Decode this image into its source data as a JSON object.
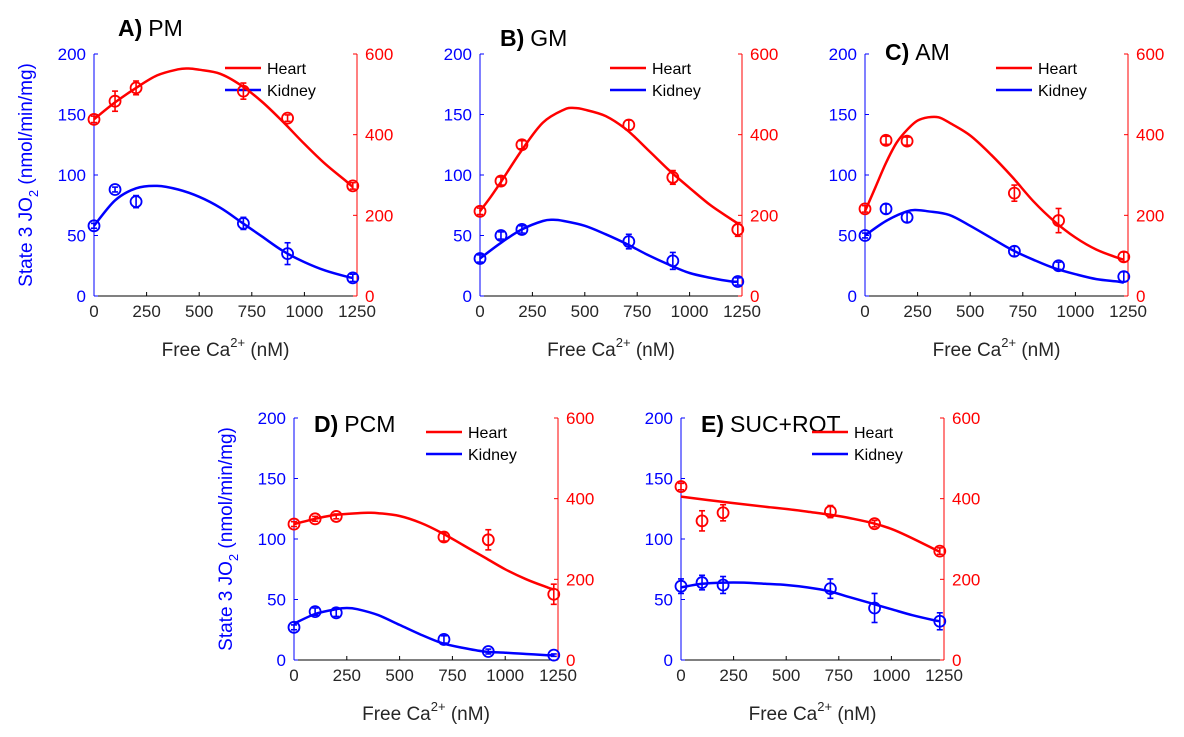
{
  "figure": {
    "left_axis_label": "State 3 JO",
    "left_axis_label_sub": "2",
    "left_axis_label_units": " (nmol/min/mg)",
    "x_axis_label": "Free Ca",
    "x_axis_label_sup": "2+",
    "x_axis_label_units": " (nM)"
  },
  "colors": {
    "heart": "#ff0000",
    "kidney": "#0000ff",
    "text": "#000000"
  },
  "chart_data": [
    {
      "type": "scatter",
      "id": "A",
      "letter": "A)",
      "name": "PM",
      "show_ylabel": true,
      "xlim": [
        0,
        1250
      ],
      "xticks": [
        0,
        250,
        500,
        750,
        1000,
        1250
      ],
      "ylim_left": [
        0,
        200
      ],
      "yticks_left": [
        0,
        50,
        100,
        150,
        200
      ],
      "ylim_right": [
        0,
        600
      ],
      "yticks_right": [
        0,
        200,
        400,
        600
      ],
      "legend": [
        "Heart",
        "Kidney"
      ],
      "series": [
        {
          "name": "Heart",
          "axis": "right",
          "x": [
            0,
            100,
            200,
            710,
            920,
            1230
          ],
          "y": [
            438,
            483,
            516,
            508,
            441,
            273
          ],
          "err": [
            8,
            25,
            17,
            20,
            8,
            8
          ],
          "fit_x": [
            0,
            100,
            200,
            300,
            400,
            450,
            500,
            600,
            700,
            800,
            900,
            1000,
            1100,
            1200,
            1230
          ],
          "fit_y": [
            438,
            480,
            516,
            547,
            562,
            564,
            561,
            551,
            522,
            481,
            431,
            377,
            327,
            284,
            270
          ]
        },
        {
          "name": "Kidney",
          "axis": "left",
          "x": [
            0,
            100,
            200,
            710,
            920,
            1230
          ],
          "y": [
            58,
            88,
            78,
            60,
            35,
            15
          ],
          "err": [
            2,
            2,
            5,
            5,
            9,
            3
          ],
          "fit_x": [
            0,
            100,
            200,
            300,
            400,
            500,
            600,
            700,
            800,
            900,
            1000,
            1100,
            1200,
            1230
          ],
          "fit_y": [
            58,
            79,
            89,
            91,
            88,
            82,
            73,
            61,
            49,
            37,
            28,
            21,
            16,
            15
          ]
        }
      ]
    },
    {
      "type": "scatter",
      "id": "B",
      "letter": "B)",
      "name": "GM",
      "show_ylabel": false,
      "xlim": [
        0,
        1250
      ],
      "xticks": [
        0,
        250,
        500,
        750,
        1000,
        1250
      ],
      "ylim_left": [
        0,
        200
      ],
      "yticks_left": [
        0,
        50,
        100,
        150,
        200
      ],
      "ylim_right": [
        0,
        600
      ],
      "yticks_right": [
        0,
        200,
        400,
        600
      ],
      "legend": [
        "Heart",
        "Kidney"
      ],
      "series": [
        {
          "name": "Heart",
          "axis": "right",
          "x": [
            0,
            100,
            200,
            710,
            920,
            1230
          ],
          "y": [
            210,
            285,
            375,
            424,
            294,
            165
          ],
          "err": [
            8,
            10,
            10,
            12,
            17,
            17
          ],
          "fit_x": [
            0,
            50,
            100,
            200,
            300,
            400,
            450,
            500,
            600,
            700,
            800,
            900,
            1000,
            1100,
            1200,
            1230
          ],
          "fit_y": [
            210,
            245,
            283,
            362,
            430,
            462,
            466,
            462,
            446,
            412,
            363,
            313,
            268,
            225,
            190,
            180
          ]
        },
        {
          "name": "Kidney",
          "axis": "left",
          "x": [
            0,
            100,
            200,
            710,
            920,
            1230
          ],
          "y": [
            31,
            50,
            55,
            45,
            29,
            12
          ],
          "err": [
            3,
            3,
            3,
            6,
            7,
            3
          ],
          "fit_x": [
            0,
            100,
            200,
            300,
            350,
            400,
            500,
            600,
            700,
            800,
            900,
            1000,
            1100,
            1200,
            1230
          ],
          "fit_y": [
            31,
            44,
            55,
            62,
            63,
            62,
            58,
            51,
            43,
            34,
            26,
            19,
            15,
            12,
            12
          ]
        }
      ]
    },
    {
      "type": "scatter",
      "id": "C",
      "letter": "C)",
      "name": "AM",
      "show_ylabel": false,
      "xlim": [
        0,
        1250
      ],
      "xticks": [
        0,
        250,
        500,
        750,
        1000,
        1250
      ],
      "ylim_left": [
        0,
        200
      ],
      "yticks_left": [
        0,
        50,
        100,
        150,
        200
      ],
      "ylim_right": [
        0,
        600
      ],
      "yticks_right": [
        0,
        200,
        400,
        600
      ],
      "legend": [
        "Heart",
        "Kidney"
      ],
      "series": [
        {
          "name": "Heart",
          "axis": "right",
          "x": [
            0,
            100,
            200,
            710,
            920,
            1230
          ],
          "y": [
            216,
            386,
            384,
            255,
            187,
            97
          ],
          "err": [
            8,
            10,
            10,
            20,
            30,
            12
          ],
          "fit_x": [
            0,
            50,
            100,
            150,
            200,
            250,
            300,
            350,
            400,
            500,
            600,
            700,
            800,
            900,
            1000,
            1100,
            1200,
            1230
          ],
          "fit_y": [
            210,
            270,
            330,
            380,
            412,
            435,
            443,
            443,
            430,
            398,
            350,
            295,
            235,
            185,
            145,
            115,
            95,
            90
          ]
        },
        {
          "name": "Kidney",
          "axis": "left",
          "x": [
            0,
            100,
            200,
            710,
            920,
            1230
          ],
          "y": [
            50,
            72,
            65,
            37,
            25,
            16
          ],
          "err": [
            2,
            4,
            4,
            4,
            3,
            4
          ],
          "fit_x": [
            0,
            100,
            200,
            250,
            300,
            400,
            500,
            600,
            700,
            800,
            900,
            1000,
            1100,
            1200,
            1230
          ],
          "fit_y": [
            50,
            62,
            70,
            71,
            70,
            67,
            58,
            48,
            38,
            30,
            23,
            18,
            14,
            12,
            11
          ]
        }
      ]
    },
    {
      "type": "scatter",
      "id": "D",
      "letter": "D)",
      "name": "PCM",
      "show_ylabel": true,
      "xlim": [
        0,
        1250
      ],
      "xticks": [
        0,
        250,
        500,
        750,
        1000,
        1250
      ],
      "ylim_left": [
        0,
        200
      ],
      "yticks_left": [
        0,
        50,
        100,
        150,
        200
      ],
      "ylim_right": [
        0,
        600
      ],
      "yticks_right": [
        0,
        200,
        400,
        600
      ],
      "legend": [
        "Heart",
        "Kidney"
      ],
      "series": [
        {
          "name": "Heart",
          "axis": "right",
          "x": [
            0,
            100,
            200,
            710,
            920,
            1230
          ],
          "y": [
            337,
            350,
            356,
            305,
            298,
            163
          ],
          "err": [
            6,
            6,
            6,
            10,
            25,
            25
          ],
          "fit_x": [
            0,
            100,
            200,
            300,
            350,
            400,
            500,
            600,
            700,
            800,
            900,
            1000,
            1100,
            1200,
            1230
          ],
          "fit_y": [
            337,
            350,
            360,
            364,
            365,
            364,
            357,
            340,
            315,
            285,
            255,
            225,
            200,
            180,
            175
          ]
        },
        {
          "name": "Kidney",
          "axis": "left",
          "x": [
            0,
            100,
            200,
            710,
            920,
            1230
          ],
          "y": [
            27,
            40,
            39,
            17,
            7,
            4
          ],
          "err": [
            2,
            3,
            3,
            3,
            2,
            1
          ],
          "fit_x": [
            0,
            100,
            200,
            250,
            300,
            400,
            500,
            600,
            700,
            800,
            900,
            1000,
            1100,
            1200,
            1230
          ],
          "fit_y": [
            30,
            38,
            42,
            43,
            42,
            37,
            29,
            21,
            14,
            10,
            7,
            6,
            5,
            4,
            4
          ]
        }
      ]
    },
    {
      "type": "scatter",
      "id": "E",
      "letter": "E)",
      "name": "SUC+ROT",
      "show_ylabel": false,
      "xlim": [
        0,
        1250
      ],
      "xticks": [
        0,
        250,
        500,
        750,
        1000,
        1250
      ],
      "ylim_left": [
        0,
        200
      ],
      "yticks_left": [
        0,
        50,
        100,
        150,
        200
      ],
      "ylim_right": [
        0,
        600
      ],
      "yticks_right": [
        0,
        200,
        400,
        600
      ],
      "legend": [
        "Heart",
        "Kidney"
      ],
      "series": [
        {
          "name": "Heart",
          "axis": "right",
          "x": [
            0,
            100,
            200,
            710,
            920,
            1230
          ],
          "y": [
            430,
            345,
            365,
            368,
            338,
            270
          ],
          "err": [
            8,
            25,
            20,
            15,
            8,
            8
          ],
          "fit_x": [
            0,
            200,
            400,
            600,
            800,
            1000,
            1230
          ],
          "fit_y": [
            405,
            392,
            380,
            368,
            352,
            325,
            268
          ]
        },
        {
          "name": "Kidney",
          "axis": "left",
          "x": [
            0,
            100,
            200,
            710,
            920,
            1230
          ],
          "y": [
            61,
            64,
            62,
            59,
            43,
            32
          ],
          "err": [
            6,
            6,
            7,
            8,
            12,
            7
          ],
          "fit_x": [
            0,
            100,
            200,
            300,
            400,
            500,
            600,
            700,
            800,
            900,
            1000,
            1100,
            1200,
            1230
          ],
          "fit_y": [
            60,
            63,
            64,
            64,
            63,
            62,
            60,
            57,
            52,
            47,
            42,
            37,
            33,
            32
          ]
        }
      ]
    }
  ]
}
